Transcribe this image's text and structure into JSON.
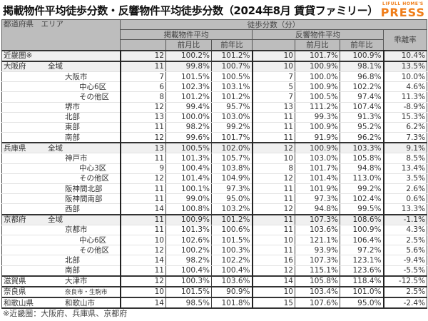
{
  "header": {
    "title": "掲載物件平均徒歩分数・反響物件平均徒歩分数（2024年8月 賃貸ファミリー）",
    "logo_top": "LIFULL HOME'S",
    "logo_main": "PRESS",
    "logo_color": "#f07e1a"
  },
  "table": {
    "col_area": "都道府県　エリア",
    "col_walk": "徒歩分数（分）",
    "col_listed": "掲載物件平均",
    "col_response": "反響物件平均",
    "col_gap": "乖離率",
    "col_mom": "前月比",
    "col_yoy": "前年比",
    "rows": [
      {
        "pref": "近畿圏※",
        "area": "",
        "level": 0,
        "l": "12",
        "l_mom": "100.2%",
        "l_yoy": "101.2%",
        "r": "10",
        "r_mom": "101.7%",
        "r_yoy": "100.9%",
        "gap": "10.4%"
      },
      {
        "pref": "大阪府",
        "area": "全域",
        "level": 1,
        "l": "11",
        "l_mom": "99.8%",
        "l_yoy": "100.7%",
        "r": "10",
        "r_mom": "100.9%",
        "r_yoy": "98.1%",
        "gap": "13.5%"
      },
      {
        "pref": "",
        "area": "大阪市",
        "level": 2,
        "l": "7",
        "l_mom": "101.5%",
        "l_yoy": "100.5%",
        "r": "7",
        "r_mom": "100.0%",
        "r_yoy": "96.8%",
        "gap": "10.0%"
      },
      {
        "pref": "",
        "area": "中心6区",
        "level": 3,
        "l": "6",
        "l_mom": "102.3%",
        "l_yoy": "103.1%",
        "r": "5",
        "r_mom": "100.9%",
        "r_yoy": "102.2%",
        "gap": "4.6%"
      },
      {
        "pref": "",
        "area": "その他区",
        "level": 3,
        "l": "8",
        "l_mom": "101.2%",
        "l_yoy": "101.2%",
        "r": "7",
        "r_mom": "100.5%",
        "r_yoy": "97.4%",
        "gap": "11.3%"
      },
      {
        "pref": "",
        "area": "堺市",
        "level": 2,
        "l": "12",
        "l_mom": "99.4%",
        "l_yoy": "95.7%",
        "r": "13",
        "r_mom": "111.2%",
        "r_yoy": "107.4%",
        "gap": "-8.9%"
      },
      {
        "pref": "",
        "area": "北部",
        "level": 2,
        "l": "13",
        "l_mom": "100.0%",
        "l_yoy": "103.0%",
        "r": "11",
        "r_mom": "99.3%",
        "r_yoy": "91.3%",
        "gap": "15.3%"
      },
      {
        "pref": "",
        "area": "東部",
        "level": 2,
        "l": "11",
        "l_mom": "98.2%",
        "l_yoy": "99.2%",
        "r": "11",
        "r_mom": "100.9%",
        "r_yoy": "95.2%",
        "gap": "6.2%"
      },
      {
        "pref": "",
        "area": "南部",
        "level": 2,
        "l": "12",
        "l_mom": "99.6%",
        "l_yoy": "101.7%",
        "r": "11",
        "r_mom": "91.9%",
        "r_yoy": "96.2%",
        "gap": "7.3%"
      },
      {
        "pref": "兵庫県",
        "area": "全域",
        "level": 1,
        "l": "13",
        "l_mom": "100.5%",
        "l_yoy": "102.0%",
        "r": "12",
        "r_mom": "100.9%",
        "r_yoy": "103.3%",
        "gap": "9.1%"
      },
      {
        "pref": "",
        "area": "神戸市",
        "level": 2,
        "l": "11",
        "l_mom": "101.3%",
        "l_yoy": "105.7%",
        "r": "10",
        "r_mom": "103.0%",
        "r_yoy": "105.8%",
        "gap": "8.5%"
      },
      {
        "pref": "",
        "area": "中心3区",
        "level": 3,
        "l": "9",
        "l_mom": "100.4%",
        "l_yoy": "103.8%",
        "r": "8",
        "r_mom": "101.7%",
        "r_yoy": "94.8%",
        "gap": "13.4%"
      },
      {
        "pref": "",
        "area": "その他区",
        "level": 3,
        "l": "12",
        "l_mom": "101.4%",
        "l_yoy": "104.9%",
        "r": "12",
        "r_mom": "101.4%",
        "r_yoy": "113.0%",
        "gap": "3.5%"
      },
      {
        "pref": "",
        "area": "阪神間北部",
        "level": 2,
        "l": "11",
        "l_mom": "100.1%",
        "l_yoy": "97.3%",
        "r": "11",
        "r_mom": "101.9%",
        "r_yoy": "99.2%",
        "gap": "2.6%"
      },
      {
        "pref": "",
        "area": "阪神間南部",
        "level": 2,
        "l": "11",
        "l_mom": "99.0%",
        "l_yoy": "95.0%",
        "r": "11",
        "r_mom": "97.3%",
        "r_yoy": "102.4%",
        "gap": "0.6%"
      },
      {
        "pref": "",
        "area": "西部",
        "level": 2,
        "l": "14",
        "l_mom": "100.8%",
        "l_yoy": "103.2%",
        "r": "12",
        "r_mom": "94.8%",
        "r_yoy": "99.5%",
        "gap": "13.3%"
      },
      {
        "pref": "京都府",
        "area": "全域",
        "level": 1,
        "l": "11",
        "l_mom": "100.9%",
        "l_yoy": "101.2%",
        "r": "11",
        "r_mom": "107.3%",
        "r_yoy": "108.6%",
        "gap": "-1.1%"
      },
      {
        "pref": "",
        "area": "京都市",
        "level": 2,
        "l": "11",
        "l_mom": "101.3%",
        "l_yoy": "100.6%",
        "r": "11",
        "r_mom": "103.6%",
        "r_yoy": "100.9%",
        "gap": "4.3%"
      },
      {
        "pref": "",
        "area": "中心6区",
        "level": 3,
        "l": "10",
        "l_mom": "102.6%",
        "l_yoy": "101.5%",
        "r": "10",
        "r_mom": "121.1%",
        "r_yoy": "106.4%",
        "gap": "2.5%"
      },
      {
        "pref": "",
        "area": "その他区",
        "level": 3,
        "l": "12",
        "l_mom": "100.2%",
        "l_yoy": "100.3%",
        "r": "11",
        "r_mom": "93.9%",
        "r_yoy": "97.2%",
        "gap": "5.6%"
      },
      {
        "pref": "",
        "area": "北部",
        "level": 2,
        "l": "14",
        "l_mom": "98.2%",
        "l_yoy": "102.2%",
        "r": "16",
        "r_mom": "107.3%",
        "r_yoy": "123.1%",
        "gap": "-9.4%"
      },
      {
        "pref": "",
        "area": "南部",
        "level": 2,
        "l": "11",
        "l_mom": "100.4%",
        "l_yoy": "100.4%",
        "r": "12",
        "r_mom": "115.1%",
        "r_yoy": "123.6%",
        "gap": "-5.5%"
      },
      {
        "pref": "滋賀県",
        "area": "大津市",
        "level": 4,
        "l": "12",
        "l_mom": "100.3%",
        "l_yoy": "103.6%",
        "r": "14",
        "r_mom": "105.8%",
        "r_yoy": "118.4%",
        "gap": "-12.5%"
      },
      {
        "pref": "奈良県",
        "area": "奈良市・生駒市",
        "level": 4,
        "l": "10",
        "l_mom": "101.5%",
        "l_yoy": "90.9%",
        "r": "10",
        "r_mom": "103.4%",
        "r_yoy": "101.0%",
        "gap": "2.5%"
      },
      {
        "pref": "和歌山県",
        "area": "和歌山市",
        "level": 4,
        "l": "14",
        "l_mom": "98.5%",
        "l_yoy": "101.8%",
        "r": "15",
        "r_mom": "107.6%",
        "r_yoy": "95.0%",
        "gap": "-2.4%"
      }
    ]
  },
  "footnote": "※近畿圏：大阪府、兵庫県、京都府"
}
